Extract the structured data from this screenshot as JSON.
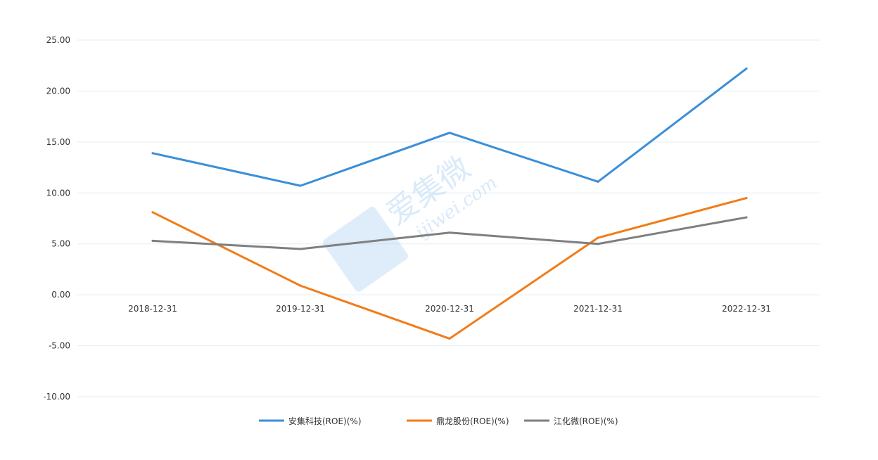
{
  "chart_data": {
    "type": "line",
    "x": [
      "2018-12-31",
      "2019-12-31",
      "2020-12-31",
      "2021-12-31",
      "2022-12-31"
    ],
    "ylim": [
      -10,
      25
    ],
    "yticks": [
      25,
      20,
      15,
      10,
      5,
      0,
      -5,
      -10
    ],
    "ytick_labels": [
      "25.00",
      "20.00",
      "15.00",
      "10.00",
      "5.00",
      "0.00",
      "-5.00",
      "-10.00"
    ],
    "grid": true,
    "legend_position": "bottom",
    "series": [
      {
        "name": "安集科技(ROE)(%)",
        "color": "#3b8fd9",
        "values": [
          13.9,
          10.7,
          15.9,
          11.1,
          22.2
        ]
      },
      {
        "name": "鼎龙股份(ROE)(%)",
        "color": "#f07d1a",
        "values": [
          8.1,
          0.9,
          -4.3,
          5.6,
          9.5
        ]
      },
      {
        "name": "江化微(ROE)(%)",
        "color": "#7f7f7f",
        "values": [
          5.3,
          4.5,
          6.1,
          5.0,
          7.6
        ]
      }
    ]
  },
  "watermark": {
    "chinese": "爱集微",
    "latin": "ijiwei.com",
    "logo_color": "#9ccaf0"
  }
}
